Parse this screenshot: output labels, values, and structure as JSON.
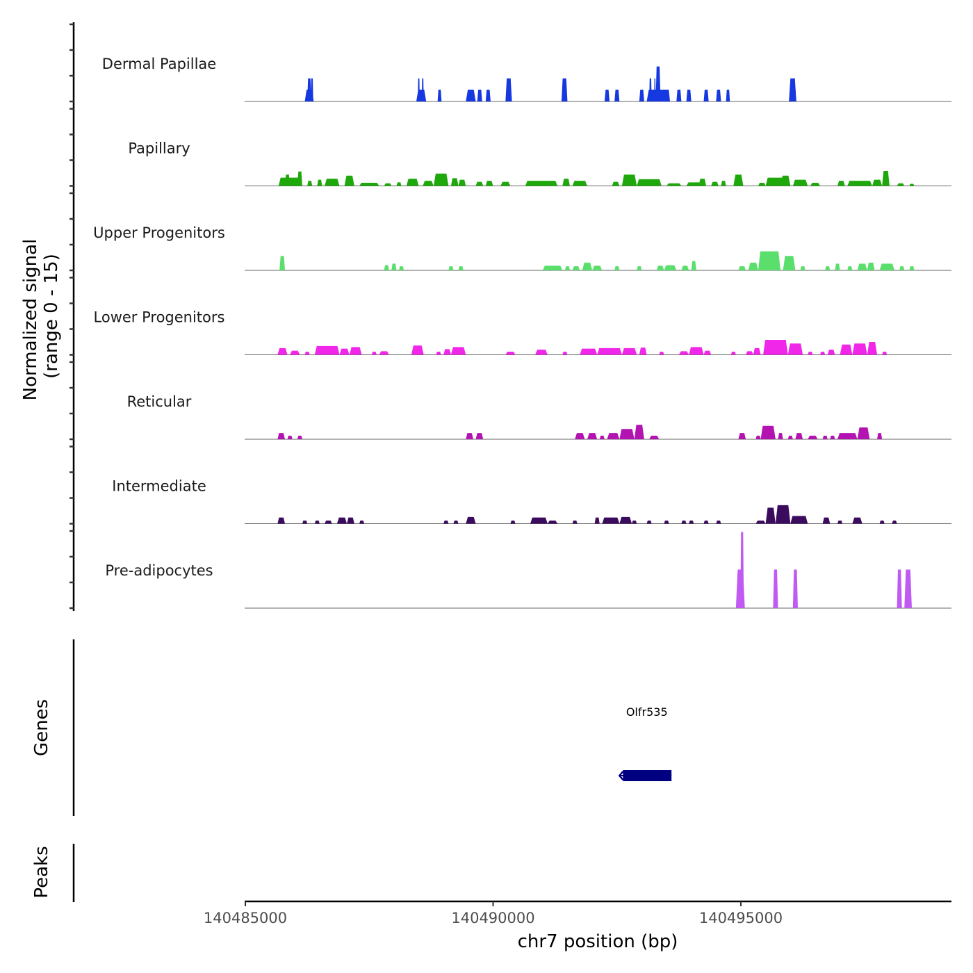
{
  "chart_data": {
    "type": "area",
    "title": "",
    "xlabel": "chr7 position (bp)",
    "ylabel": "Normalized signal\n(range 0 - 15)",
    "ylabel_lines": [
      "Normalized signal",
      "(range 0 - 15)"
    ],
    "xlim": [
      140485000,
      140499250
    ],
    "ylim": [
      0,
      15
    ],
    "x_ticks": [
      140485000,
      140490000,
      140495000
    ],
    "x_tick_labels": [
      "140485000",
      "140490000",
      "140495000"
    ],
    "grid": false,
    "legend": "none",
    "tracks": [
      {
        "name": "Dermal Papillae",
        "color": "#1538E0",
        "peaks": [
          [
            140486200,
            140486380,
            2.3
          ],
          [
            140486250,
            140486330,
            4.5
          ],
          [
            140486320,
            140486370,
            4.5
          ],
          [
            140488450,
            140488650,
            2.3
          ],
          [
            140488480,
            140488520,
            4.5
          ],
          [
            140488560,
            140488600,
            4.5
          ],
          [
            140488880,
            140488960,
            2.3
          ],
          [
            140489450,
            140489650,
            2.3
          ],
          [
            140489680,
            140489780,
            2.3
          ],
          [
            140489850,
            140489950,
            2.3
          ],
          [
            140490250,
            140490380,
            4.5
          ],
          [
            140491380,
            140491500,
            4.5
          ],
          [
            140492250,
            140492350,
            2.3
          ],
          [
            140492450,
            140492550,
            2.3
          ],
          [
            140492950,
            140493050,
            2.3
          ],
          [
            140493100,
            140493550,
            2.3
          ],
          [
            140493150,
            140493200,
            4.5
          ],
          [
            140493280,
            140493380,
            6.8
          ],
          [
            140493250,
            140493280,
            4.5
          ],
          [
            140493450,
            140493570,
            2.3
          ],
          [
            140493700,
            140493800,
            2.3
          ],
          [
            140493900,
            140494000,
            2.3
          ],
          [
            140494250,
            140494350,
            2.3
          ],
          [
            140494500,
            140494600,
            2.3
          ],
          [
            140494700,
            140494780,
            2.3
          ],
          [
            140495970,
            140496120,
            4.5
          ]
        ]
      },
      {
        "name": "Papillary",
        "color": "#1FA80C",
        "peaks": [
          [
            140485670,
            140486150,
            1.6
          ],
          [
            140485800,
            140485900,
            2.2
          ],
          [
            140486050,
            140486150,
            2.8
          ],
          [
            140486250,
            140486350,
            1.0
          ],
          [
            140486450,
            140486550,
            1.2
          ],
          [
            140486600,
            140486900,
            1.4
          ],
          [
            140487000,
            140487200,
            2.0
          ],
          [
            140487300,
            140487700,
            0.6
          ],
          [
            140487800,
            140487950,
            0.5
          ],
          [
            140488050,
            140488150,
            0.7
          ],
          [
            140488250,
            140488500,
            1.4
          ],
          [
            140488580,
            140488800,
            1.0
          ],
          [
            140488800,
            140489100,
            2.4
          ],
          [
            140489150,
            140489300,
            1.5
          ],
          [
            140489300,
            140489450,
            1.2
          ],
          [
            140489650,
            140489800,
            0.8
          ],
          [
            140489850,
            140490000,
            1.0
          ],
          [
            140490150,
            140490350,
            0.8
          ],
          [
            140490650,
            140491300,
            1.0
          ],
          [
            140491400,
            140491550,
            1.4
          ],
          [
            140491600,
            140491900,
            1.0
          ],
          [
            140492400,
            140492550,
            0.8
          ],
          [
            140492600,
            140492900,
            2.2
          ],
          [
            140492900,
            140493400,
            1.3
          ],
          [
            140493500,
            140493800,
            0.5
          ],
          [
            140493900,
            140494200,
            0.7
          ],
          [
            140494150,
            140494300,
            1.4
          ],
          [
            140494400,
            140494550,
            0.8
          ],
          [
            140494600,
            140494700,
            1.0
          ],
          [
            140494850,
            140495050,
            2.2
          ],
          [
            140495350,
            140495500,
            0.6
          ],
          [
            140495500,
            140496000,
            1.6
          ],
          [
            140495800,
            140496000,
            2.0
          ],
          [
            140496050,
            140496350,
            1.2
          ],
          [
            140496400,
            140496600,
            0.6
          ],
          [
            140496950,
            140497100,
            1.0
          ],
          [
            140497150,
            140497650,
            1.0
          ],
          [
            140497650,
            140497850,
            1.2
          ],
          [
            140497850,
            140498000,
            2.9
          ],
          [
            140498150,
            140498300,
            0.5
          ],
          [
            140498400,
            140498500,
            0.4
          ]
        ]
      },
      {
        "name": "Upper Progenitors",
        "color": "#5ADE6C",
        "peaks": [
          [
            140485690,
            140485800,
            2.8
          ],
          [
            140487800,
            140487900,
            1.0
          ],
          [
            140487950,
            140488050,
            1.3
          ],
          [
            140488100,
            140488200,
            0.8
          ],
          [
            140489100,
            140489200,
            0.8
          ],
          [
            140489300,
            140489400,
            0.8
          ],
          [
            140491000,
            140491400,
            0.9
          ],
          [
            140491450,
            140491550,
            0.8
          ],
          [
            140491600,
            140491750,
            0.8
          ],
          [
            140491800,
            140492000,
            1.5
          ],
          [
            140492000,
            140492200,
            0.9
          ],
          [
            140492450,
            140492550,
            0.8
          ],
          [
            140492900,
            140493000,
            0.8
          ],
          [
            140493300,
            140493450,
            0.9
          ],
          [
            140493450,
            140493700,
            1.0
          ],
          [
            140493800,
            140493950,
            0.9
          ],
          [
            140494000,
            140494100,
            1.8
          ],
          [
            140494950,
            140495100,
            0.8
          ],
          [
            140495150,
            140495350,
            1.5
          ],
          [
            140495350,
            140495800,
            3.7
          ],
          [
            140495850,
            140496100,
            2.8
          ],
          [
            140496200,
            140496300,
            0.8
          ],
          [
            140496700,
            140496800,
            0.8
          ],
          [
            140496900,
            140497000,
            1.3
          ],
          [
            140497150,
            140497250,
            0.8
          ],
          [
            140497350,
            140497550,
            1.3
          ],
          [
            140497550,
            140497700,
            1.5
          ],
          [
            140497800,
            140498100,
            1.3
          ],
          [
            140498200,
            140498300,
            0.8
          ],
          [
            140498400,
            140498500,
            0.8
          ]
        ]
      },
      {
        "name": "Lower Progenitors",
        "color": "#F026E8",
        "peaks": [
          [
            140485650,
            140485850,
            1.3
          ],
          [
            140485900,
            140486100,
            0.8
          ],
          [
            140486200,
            140486300,
            0.6
          ],
          [
            140486400,
            140486900,
            1.7
          ],
          [
            140486900,
            140487100,
            1.2
          ],
          [
            140487100,
            140487350,
            1.5
          ],
          [
            140487550,
            140487650,
            0.6
          ],
          [
            140487700,
            140487900,
            0.7
          ],
          [
            140488350,
            140488600,
            1.8
          ],
          [
            140488850,
            140488950,
            0.6
          ],
          [
            140489000,
            140489150,
            1.1
          ],
          [
            140489150,
            140489450,
            1.5
          ],
          [
            140490250,
            140490450,
            0.6
          ],
          [
            140490850,
            140491100,
            1.0
          ],
          [
            140491400,
            140491500,
            0.6
          ],
          [
            140491750,
            140492100,
            1.2
          ],
          [
            140492100,
            140492600,
            1.3
          ],
          [
            140492600,
            140492900,
            1.3
          ],
          [
            140492950,
            140493100,
            1.4
          ],
          [
            140493350,
            140493450,
            0.6
          ],
          [
            140493750,
            140493950,
            0.7
          ],
          [
            140493950,
            140494250,
            1.5
          ],
          [
            140494250,
            140494400,
            0.8
          ],
          [
            140494800,
            140494900,
            0.6
          ],
          [
            140495100,
            140495250,
            0.7
          ],
          [
            140495250,
            140495400,
            1.3
          ],
          [
            140495450,
            140495950,
            2.9
          ],
          [
            140495950,
            140496250,
            2.2
          ],
          [
            140496350,
            140496450,
            0.6
          ],
          [
            140496600,
            140496700,
            0.6
          ],
          [
            140496750,
            140496900,
            1.0
          ],
          [
            140497000,
            140497250,
            2.0
          ],
          [
            140497250,
            140497550,
            2.2
          ],
          [
            140497550,
            140497750,
            2.5
          ],
          [
            140497850,
            140497950,
            0.6
          ]
        ]
      },
      {
        "name": "Reticular",
        "color": "#B313B0",
        "peaks": [
          [
            140485650,
            140485800,
            1.2
          ],
          [
            140485850,
            140485950,
            0.7
          ],
          [
            140486050,
            140486150,
            0.7
          ],
          [
            140489450,
            140489600,
            1.2
          ],
          [
            140489650,
            140489800,
            1.2
          ],
          [
            140491650,
            140491850,
            1.2
          ],
          [
            140491900,
            140492100,
            1.2
          ],
          [
            140492150,
            140492250,
            0.7
          ],
          [
            140492300,
            140492550,
            1.2
          ],
          [
            140492550,
            140492850,
            2.0
          ],
          [
            140492850,
            140493050,
            2.8
          ],
          [
            140493150,
            140493350,
            0.7
          ],
          [
            140494950,
            140495100,
            1.2
          ],
          [
            140495300,
            140495400,
            0.7
          ],
          [
            140495400,
            140495700,
            2.6
          ],
          [
            140495750,
            140495850,
            1.2
          ],
          [
            140495950,
            140496050,
            0.7
          ],
          [
            140496100,
            140496250,
            1.2
          ],
          [
            140496350,
            140496550,
            0.7
          ],
          [
            140496650,
            140496750,
            0.7
          ],
          [
            140496800,
            140496900,
            0.7
          ],
          [
            140496950,
            140497350,
            1.2
          ],
          [
            140497350,
            140497600,
            2.3
          ],
          [
            140497750,
            140497850,
            1.2
          ]
        ]
      },
      {
        "name": "Intermediate",
        "color": "#3B0B5E",
        "peaks": [
          [
            140485650,
            140485800,
            1.2
          ],
          [
            140486150,
            140486250,
            0.6
          ],
          [
            140486400,
            140486500,
            0.6
          ],
          [
            140486600,
            140486750,
            0.6
          ],
          [
            140486850,
            140487050,
            1.2
          ],
          [
            140487050,
            140487200,
            1.2
          ],
          [
            140487300,
            140487400,
            0.6
          ],
          [
            140489000,
            140489100,
            0.6
          ],
          [
            140489200,
            140489300,
            0.6
          ],
          [
            140489450,
            140489650,
            1.3
          ],
          [
            140490350,
            140490450,
            0.6
          ],
          [
            140490750,
            140491100,
            1.2
          ],
          [
            140491100,
            140491300,
            0.6
          ],
          [
            140491600,
            140491700,
            0.6
          ],
          [
            140492050,
            140492150,
            1.2
          ],
          [
            140492200,
            140492550,
            1.2
          ],
          [
            140492550,
            140492800,
            1.3
          ],
          [
            140492800,
            140492900,
            0.6
          ],
          [
            140493100,
            140493200,
            0.6
          ],
          [
            140493450,
            140493550,
            0.6
          ],
          [
            140493800,
            140493900,
            0.6
          ],
          [
            140493950,
            140494050,
            0.6
          ],
          [
            140494250,
            140494350,
            0.6
          ],
          [
            140494500,
            140494600,
            0.6
          ],
          [
            140495300,
            140495500,
            0.6
          ],
          [
            140495500,
            140495700,
            3.1
          ],
          [
            140495700,
            140496000,
            3.6
          ],
          [
            140496000,
            140496350,
            1.5
          ],
          [
            140496650,
            140496800,
            1.2
          ],
          [
            140496950,
            140497050,
            0.6
          ],
          [
            140497250,
            140497450,
            1.2
          ],
          [
            140497800,
            140497900,
            0.6
          ],
          [
            140498050,
            140498150,
            0.6
          ]
        ]
      },
      {
        "name": "Pre-adipocytes",
        "color": "#C05AF3",
        "peaks": [
          [
            140494900,
            140495080,
            7.5
          ],
          [
            140494990,
            140495060,
            14.8
          ],
          [
            140495650,
            140495750,
            7.5
          ],
          [
            140496050,
            140496150,
            7.5
          ],
          [
            140498150,
            140498250,
            7.5
          ],
          [
            140498300,
            140498450,
            7.5
          ]
        ]
      }
    ],
    "genes": [
      {
        "name": "Olfr535",
        "start": 140492550,
        "end": 140493600,
        "strand": "-",
        "color": "#000080"
      }
    ],
    "peaks_panel": {
      "label": "Peaks",
      "items": []
    },
    "panel_labels": {
      "genes": "Genes",
      "peaks": "Peaks"
    }
  }
}
